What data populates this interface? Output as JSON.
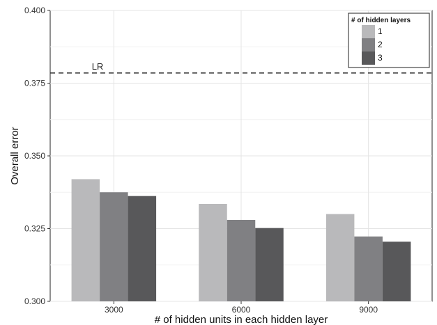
{
  "chart_data": {
    "type": "bar",
    "title": "",
    "xlabel": "# of hidden units in each hidden layer",
    "ylabel": "Overall error",
    "categories": [
      "3000",
      "6000",
      "9000"
    ],
    "series": [
      {
        "name": "1",
        "color": "#b9b9bb",
        "values": [
          0.342,
          0.3335,
          0.33
        ]
      },
      {
        "name": "2",
        "color": "#808083",
        "values": [
          0.3375,
          0.328,
          0.3223
        ]
      },
      {
        "name": "3",
        "color": "#58585a",
        "values": [
          0.3362,
          0.3252,
          0.3205
        ]
      }
    ],
    "ylim": [
      0.3,
      0.4
    ],
    "yticks": [
      "0.300",
      "0.325",
      "0.350",
      "0.375",
      "0.400"
    ],
    "grid": true,
    "legend": {
      "title": "# of hidden layers",
      "position": "top-right"
    },
    "reference_line": {
      "label": "LR",
      "value": 0.3785,
      "style": "dashed"
    }
  }
}
